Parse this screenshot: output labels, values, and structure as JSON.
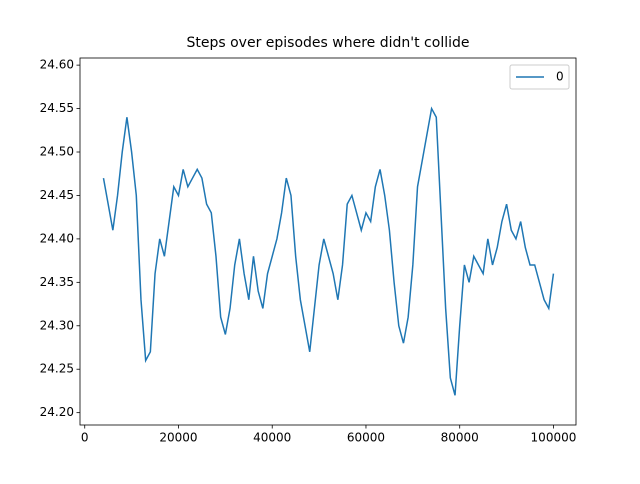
{
  "chart_data": {
    "type": "line",
    "title": "Steps over episodes where didn't collide",
    "x": [
      4000,
      5000,
      6000,
      7000,
      8000,
      9000,
      10000,
      11000,
      12000,
      13000,
      14000,
      15000,
      16000,
      17000,
      18000,
      19000,
      20000,
      21000,
      22000,
      23000,
      24000,
      25000,
      26000,
      27000,
      28000,
      29000,
      30000,
      31000,
      32000,
      33000,
      34000,
      35000,
      36000,
      37000,
      38000,
      39000,
      40000,
      41000,
      42000,
      43000,
      44000,
      45000,
      46000,
      47000,
      48000,
      49000,
      50000,
      51000,
      52000,
      53000,
      54000,
      55000,
      56000,
      57000,
      58000,
      59000,
      60000,
      61000,
      62000,
      63000,
      64000,
      65000,
      66000,
      67000,
      68000,
      69000,
      70000,
      71000,
      72000,
      73000,
      74000,
      75000,
      76000,
      77000,
      78000,
      79000,
      80000,
      81000,
      82000,
      83000,
      84000,
      85000,
      86000,
      87000,
      88000,
      89000,
      90000,
      91000,
      92000,
      93000,
      94000,
      95000,
      96000,
      97000,
      98000,
      99000,
      100000
    ],
    "series": [
      {
        "name": "0",
        "color": "#1f77b4",
        "values": [
          24.47,
          24.44,
          24.41,
          24.45,
          24.5,
          24.54,
          24.5,
          24.45,
          24.33,
          24.26,
          24.27,
          24.36,
          24.4,
          24.38,
          24.42,
          24.46,
          24.45,
          24.48,
          24.46,
          24.47,
          24.48,
          24.47,
          24.44,
          24.43,
          24.38,
          24.31,
          24.29,
          24.32,
          24.37,
          24.4,
          24.36,
          24.33,
          24.38,
          24.34,
          24.32,
          24.36,
          24.38,
          24.4,
          24.43,
          24.47,
          24.45,
          24.38,
          24.33,
          24.3,
          24.27,
          24.32,
          24.37,
          24.4,
          24.38,
          24.36,
          24.33,
          24.37,
          24.44,
          24.45,
          24.43,
          24.41,
          24.43,
          24.42,
          24.46,
          24.48,
          24.45,
          24.41,
          24.35,
          24.3,
          24.28,
          24.31,
          24.37,
          24.46,
          24.49,
          24.52,
          24.55,
          24.54,
          24.43,
          24.32,
          24.24,
          24.22,
          24.3,
          24.37,
          24.35,
          24.38,
          24.37,
          24.36,
          24.4,
          24.37,
          24.39,
          24.42,
          24.44,
          24.41,
          24.4,
          24.42,
          24.39,
          24.37,
          24.37,
          24.35,
          24.33,
          24.32,
          24.36
        ]
      }
    ],
    "xlim": [
      -1010,
      104810
    ],
    "xticks": [
      0,
      20000,
      40000,
      60000,
      80000,
      100000
    ],
    "ylim": [
      24.1858,
      24.6082
    ],
    "yticks": [
      {
        "value": 24.2,
        "label": "24.20"
      },
      {
        "value": 24.25,
        "label": "24.25"
      },
      {
        "value": 24.3,
        "label": "24.30"
      },
      {
        "value": 24.35,
        "label": "24.35"
      },
      {
        "value": 24.4,
        "label": "24.40"
      },
      {
        "value": 24.45,
        "label": "24.45"
      },
      {
        "value": 24.5,
        "label": "24.50"
      },
      {
        "value": 24.55,
        "label": "24.55"
      },
      {
        "value": 24.6,
        "label": "24.60"
      }
    ],
    "legend": "upper right"
  }
}
